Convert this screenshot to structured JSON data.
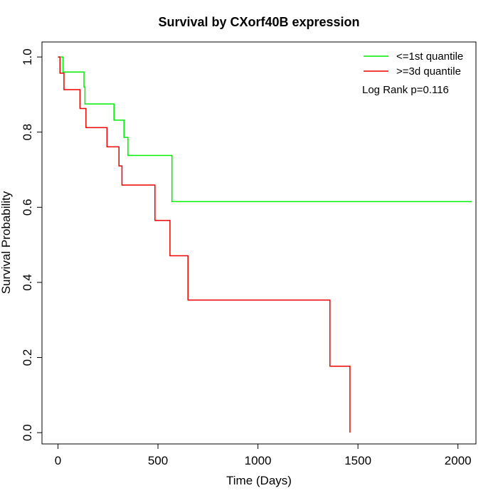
{
  "chart_data": {
    "type": "line",
    "title": "Survival by CXorf40B expression",
    "xlabel": "Time (Days)",
    "ylabel": "Survival Probability",
    "xlim": [
      -80,
      2090
    ],
    "ylim": [
      -0.03,
      1.04
    ],
    "x_ticks": [
      0,
      500,
      1000,
      1500,
      2000
    ],
    "y_ticks": [
      0.0,
      0.2,
      0.4,
      0.6,
      0.8,
      1.0
    ],
    "x_tick_labels": [
      "0",
      "500",
      "1000",
      "1500",
      "2000"
    ],
    "y_tick_labels": [
      "0.0",
      "0.2",
      "0.4",
      "0.6",
      "0.8",
      "1.0"
    ],
    "legend_position": "top-right",
    "annotation": "Log Rank p=0.116",
    "series": [
      {
        "name": "<=1st quantile",
        "color": "#00ee00",
        "step_points": [
          [
            0,
            1.0
          ],
          [
            25,
            1.0
          ],
          [
            25,
            0.96
          ],
          [
            130,
            0.96
          ],
          [
            130,
            0.92
          ],
          [
            135,
            0.92
          ],
          [
            135,
            0.875
          ],
          [
            280,
            0.875
          ],
          [
            280,
            0.832
          ],
          [
            330,
            0.832
          ],
          [
            330,
            0.786
          ],
          [
            350,
            0.786
          ],
          [
            350,
            0.738
          ],
          [
            570,
            0.738
          ],
          [
            570,
            0.615
          ],
          [
            2070,
            0.615
          ]
        ]
      },
      {
        "name": ">=3d quantile",
        "color": "#ee0000",
        "step_points": [
          [
            0,
            1.0
          ],
          [
            10,
            1.0
          ],
          [
            10,
            0.957
          ],
          [
            30,
            0.957
          ],
          [
            30,
            0.913
          ],
          [
            110,
            0.913
          ],
          [
            110,
            0.863
          ],
          [
            140,
            0.863
          ],
          [
            140,
            0.812
          ],
          [
            245,
            0.812
          ],
          [
            245,
            0.761
          ],
          [
            305,
            0.761
          ],
          [
            305,
            0.71
          ],
          [
            320,
            0.71
          ],
          [
            320,
            0.659
          ],
          [
            485,
            0.659
          ],
          [
            485,
            0.565
          ],
          [
            560,
            0.565
          ],
          [
            560,
            0.471
          ],
          [
            650,
            0.471
          ],
          [
            650,
            0.353
          ],
          [
            1360,
            0.353
          ],
          [
            1360,
            0.177
          ],
          [
            1460,
            0.177
          ],
          [
            1460,
            0.0
          ]
        ]
      }
    ]
  }
}
